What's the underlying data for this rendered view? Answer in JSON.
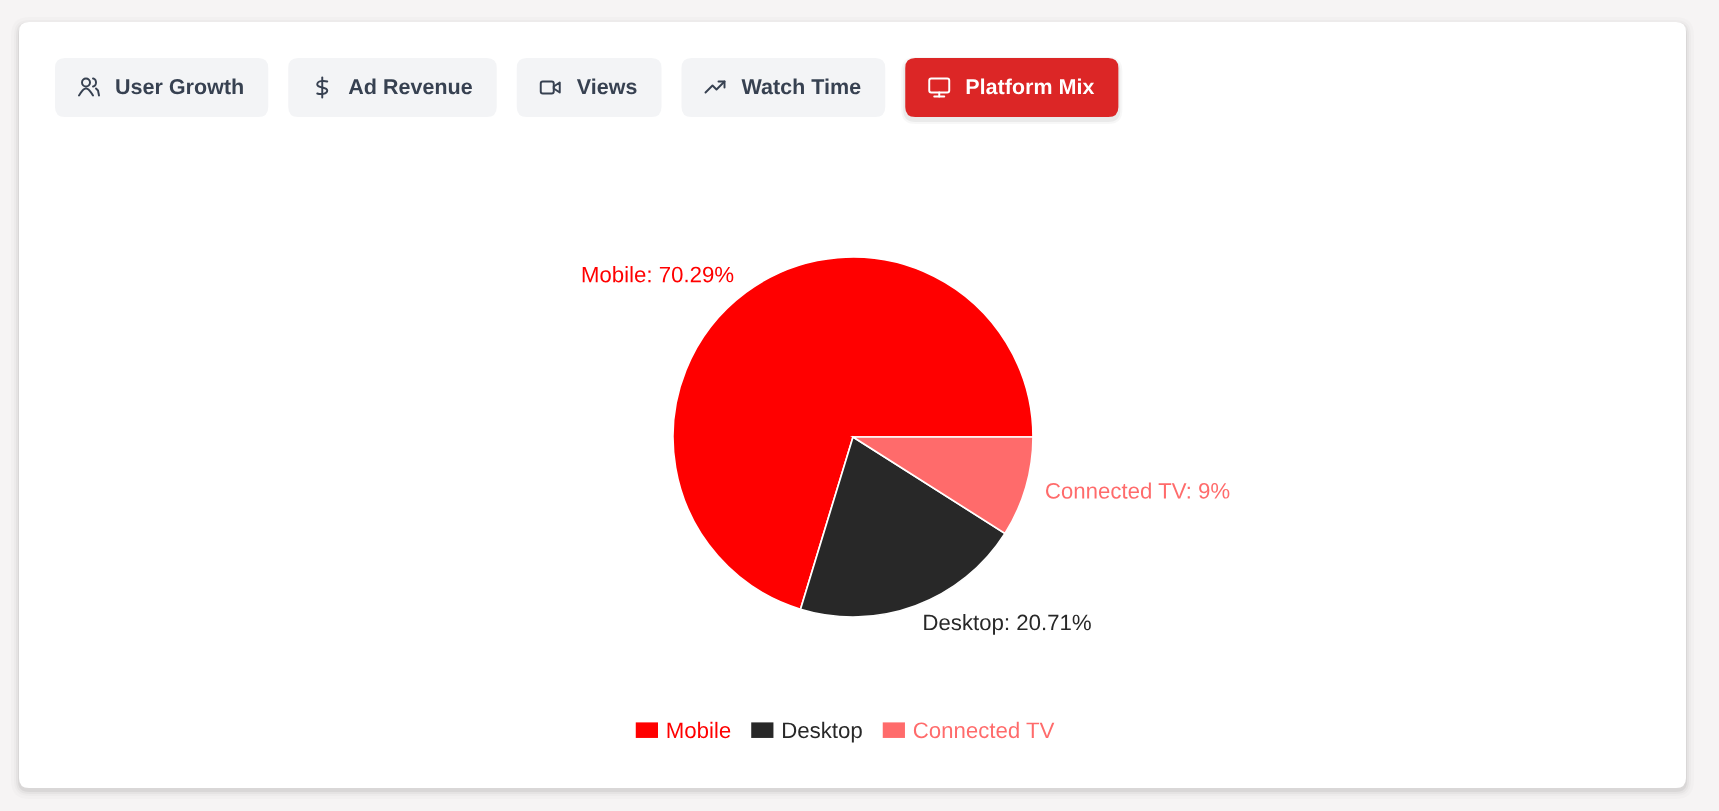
{
  "chart_data": {
    "type": "pie",
    "title": "Platform Mix",
    "annotations": [
      "User Growth",
      "Ad Revenue",
      "Views",
      "Watch Time"
    ],
    "categories": [
      "Mobile",
      "Desktop",
      "Connected TV"
    ],
    "values": [
      70.29,
      20.71,
      9
    ],
    "colors": [
      "#ff0000",
      "#282828",
      "#ff6b6b"
    ],
    "value_labels": [
      "Mobile: 70.29%",
      "Desktop: 20.71%",
      "Connected TV: 9%"
    ],
    "legend": "bottom"
  }
}
